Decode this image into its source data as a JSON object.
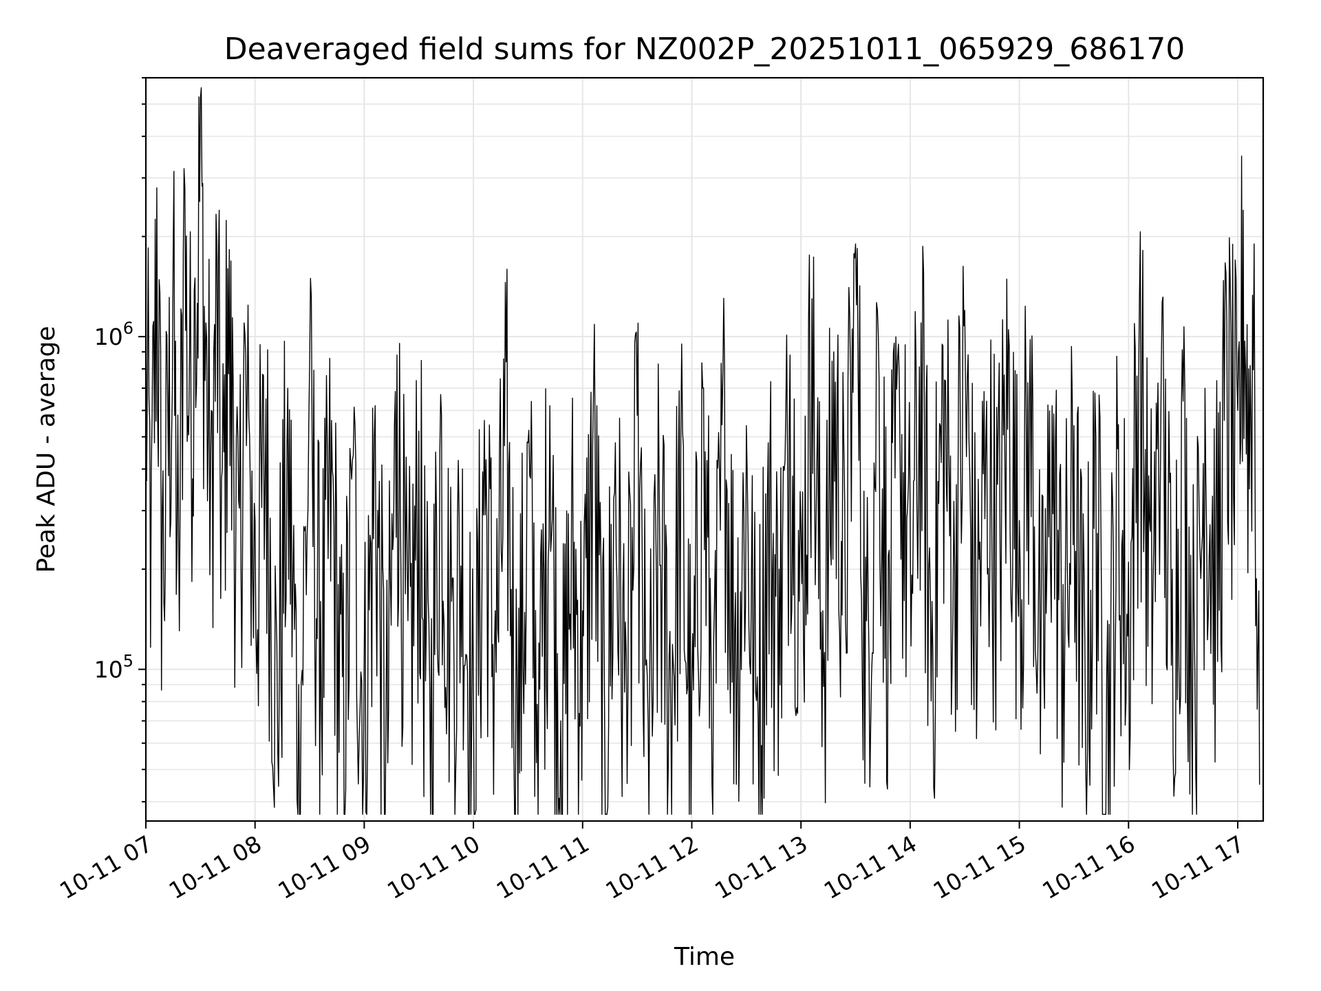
{
  "chart_data": {
    "type": "line",
    "title": "Deaveraged field sums for NZ002P_20251011_065929_686170",
    "xlabel": "Time",
    "ylabel": "Peak ADU - average",
    "xlim": [
      "2025-10-11T07:00",
      "2025-10-11T17:14"
    ],
    "ylim": [
      35000,
      6000000
    ],
    "yscale": "log",
    "grid": true,
    "color": "#000000",
    "x_ticks": [
      {
        "value": "2025-10-11T07:00",
        "label": "10-11 07"
      },
      {
        "value": "2025-10-11T08:00",
        "label": "10-11 08"
      },
      {
        "value": "2025-10-11T09:00",
        "label": "10-11 09"
      },
      {
        "value": "2025-10-11T10:00",
        "label": "10-11 10"
      },
      {
        "value": "2025-10-11T11:00",
        "label": "10-11 11"
      },
      {
        "value": "2025-10-11T12:00",
        "label": "10-11 12"
      },
      {
        "value": "2025-10-11T13:00",
        "label": "10-11 13"
      },
      {
        "value": "2025-10-11T14:00",
        "label": "10-11 14"
      },
      {
        "value": "2025-10-11T15:00",
        "label": "10-11 15"
      },
      {
        "value": "2025-10-11T16:00",
        "label": "10-11 16"
      },
      {
        "value": "2025-10-11T17:00",
        "label": "10-11 17"
      }
    ],
    "y_ticks": [
      {
        "value": 100000,
        "base": "10",
        "exp": "5"
      },
      {
        "value": 1000000,
        "base": "10",
        "exp": "6"
      }
    ],
    "series": [
      {
        "x": [
          "2025-10-11T07:00",
          "2025-10-11T07:03",
          "2025-10-11T07:06",
          "2025-10-11T07:09",
          "2025-10-11T07:12",
          "2025-10-11T07:15",
          "2025-10-11T07:18",
          "2025-10-11T07:21",
          "2025-10-11T07:24",
          "2025-10-11T07:27",
          "2025-10-11T07:30",
          "2025-10-11T07:33",
          "2025-10-11T07:36",
          "2025-10-11T07:39",
          "2025-10-11T07:42",
          "2025-10-11T07:45",
          "2025-10-11T07:48",
          "2025-10-11T07:51",
          "2025-10-11T07:54",
          "2025-10-11T07:57",
          "2025-10-11T08:00",
          "2025-10-11T08:06",
          "2025-10-11T08:12",
          "2025-10-11T08:18",
          "2025-10-11T08:24",
          "2025-10-11T08:30",
          "2025-10-11T08:36",
          "2025-10-11T08:42",
          "2025-10-11T08:48",
          "2025-10-11T08:54",
          "2025-10-11T09:00",
          "2025-10-11T09:06",
          "2025-10-11T09:12",
          "2025-10-11T09:18",
          "2025-10-11T09:24",
          "2025-10-11T09:30",
          "2025-10-11T09:36",
          "2025-10-11T09:42",
          "2025-10-11T09:48",
          "2025-10-11T09:54",
          "2025-10-11T10:00",
          "2025-10-11T10:06",
          "2025-10-11T10:12",
          "2025-10-11T10:18",
          "2025-10-11T10:24",
          "2025-10-11T10:30",
          "2025-10-11T10:36",
          "2025-10-11T10:42",
          "2025-10-11T10:48",
          "2025-10-11T10:54",
          "2025-10-11T11:00",
          "2025-10-11T11:06",
          "2025-10-11T11:12",
          "2025-10-11T11:18",
          "2025-10-11T11:24",
          "2025-10-11T11:30",
          "2025-10-11T11:36",
          "2025-10-11T11:42",
          "2025-10-11T11:48",
          "2025-10-11T11:54",
          "2025-10-11T12:00",
          "2025-10-11T12:06",
          "2025-10-11T12:12",
          "2025-10-11T12:18",
          "2025-10-11T12:24",
          "2025-10-11T12:30",
          "2025-10-11T12:36",
          "2025-10-11T12:42",
          "2025-10-11T12:48",
          "2025-10-11T12:54",
          "2025-10-11T13:00",
          "2025-10-11T13:06",
          "2025-10-11T13:12",
          "2025-10-11T13:18",
          "2025-10-11T13:24",
          "2025-10-11T13:30",
          "2025-10-11T13:36",
          "2025-10-11T13:42",
          "2025-10-11T13:48",
          "2025-10-11T13:54",
          "2025-10-11T14:00",
          "2025-10-11T14:06",
          "2025-10-11T14:12",
          "2025-10-11T14:18",
          "2025-10-11T14:24",
          "2025-10-11T14:30",
          "2025-10-11T14:36",
          "2025-10-11T14:42",
          "2025-10-11T14:48",
          "2025-10-11T14:54",
          "2025-10-11T15:00",
          "2025-10-11T15:06",
          "2025-10-11T15:12",
          "2025-10-11T15:18",
          "2025-10-11T15:24",
          "2025-10-11T15:30",
          "2025-10-11T15:36",
          "2025-10-11T15:42",
          "2025-10-11T15:48",
          "2025-10-11T15:54",
          "2025-10-11T16:00",
          "2025-10-11T16:06",
          "2025-10-11T16:12",
          "2025-10-11T16:18",
          "2025-10-11T16:24",
          "2025-10-11T16:30",
          "2025-10-11T16:36",
          "2025-10-11T16:42",
          "2025-10-11T16:48",
          "2025-10-11T16:54",
          "2025-10-11T17:00",
          "2025-10-11T17:03",
          "2025-10-11T17:06",
          "2025-10-11T17:09",
          "2025-10-11T17:12"
        ],
        "y": [
          1200000,
          400000,
          2800000,
          300000,
          650000,
          1800000,
          250000,
          3200000,
          900000,
          1500000,
          5200000,
          1100000,
          600000,
          1900000,
          400000,
          1600000,
          700000,
          320000,
          1100000,
          500000,
          280000,
          650000,
          120000,
          700000,
          90000,
          820000,
          160000,
          560000,
          95000,
          440000,
          110000,
          620000,
          75000,
          880000,
          140000,
          520000,
          90000,
          670000,
          160000,
          400000,
          85000,
          560000,
          150000,
          840000,
          95000,
          480000,
          120000,
          620000,
          70000,
          360000,
          150000,
          700000,
          85000,
          480000,
          110000,
          580000,
          70000,
          400000,
          130000,
          520000,
          90000,
          700000,
          120000,
          820000,
          170000,
          540000,
          95000,
          480000,
          200000,
          880000,
          260000,
          1300000,
          150000,
          900000,
          320000,
          1900000,
          140000,
          1200000,
          220000,
          760000,
          280000,
          1100000,
          160000,
          940000,
          320000,
          1200000,
          210000,
          640000,
          360000,
          1050000,
          280000,
          980000,
          140000,
          620000,
          180000,
          540000,
          120000,
          500000,
          95000,
          460000,
          210000,
          1300000,
          260000,
          820000,
          200000,
          640000,
          150000,
          700000,
          280000,
          1100000,
          600000,
          2400000,
          800000,
          1900000,
          45000
        ]
      }
    ]
  }
}
